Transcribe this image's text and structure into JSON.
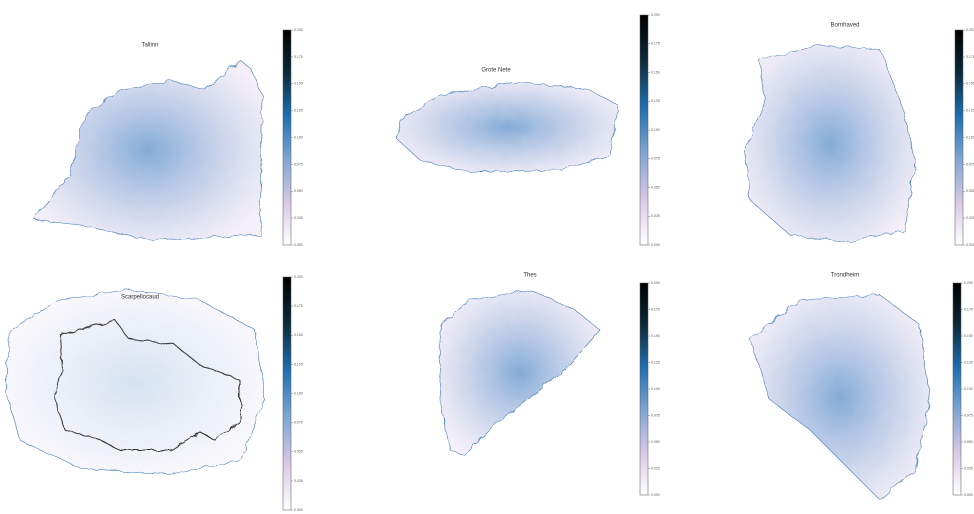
{
  "chart_data": [
    {
      "type": "heatmap",
      "title": "Tallinn",
      "zlim": [
        0,
        0.2
      ],
      "zticks": [
        {
          "value": 0,
          "label": "0.000"
        },
        {
          "value": 0.025,
          "label": "0.025"
        },
        {
          "value": 0.05,
          "label": "0.050"
        },
        {
          "value": 0.075,
          "label": "0.075"
        },
        {
          "value": 0.1,
          "label": "0.100"
        },
        {
          "value": 0.125,
          "label": "0.125"
        },
        {
          "value": 0.15,
          "label": "0.150"
        },
        {
          "value": 0.175,
          "label": "0.175"
        },
        {
          "value": 0.2,
          "label": "0.200"
        }
      ],
      "colors": [
        "#ffffff",
        "#d9c8e6",
        "#7fa6d3",
        "#1f6fb2",
        "#0b2a3a",
        "#000000"
      ]
    },
    {
      "type": "heatmap",
      "title": "Grote Nete",
      "zlim": [
        0,
        0.2
      ],
      "zticks": [
        {
          "value": 0,
          "label": "0.000"
        },
        {
          "value": 0.025,
          "label": "0.025"
        },
        {
          "value": 0.05,
          "label": "0.050"
        },
        {
          "value": 0.075,
          "label": "0.075"
        },
        {
          "value": 0.1,
          "label": "0.100"
        },
        {
          "value": 0.125,
          "label": "0.125"
        },
        {
          "value": 0.15,
          "label": "0.150"
        },
        {
          "value": 0.175,
          "label": "0.175"
        },
        {
          "value": 0.2,
          "label": "0.200"
        }
      ],
      "colors": [
        "#ffffff",
        "#d9c8e6",
        "#7fa6d3",
        "#1f6fb2",
        "#0b2a3a",
        "#000000"
      ]
    },
    {
      "type": "heatmap",
      "title": "Bornhaved",
      "zlim": [
        0,
        0.2
      ],
      "zticks": [
        {
          "value": 0,
          "label": "0.000"
        },
        {
          "value": 0.025,
          "label": "0.025"
        },
        {
          "value": 0.05,
          "label": "0.050"
        },
        {
          "value": 0.075,
          "label": "0.075"
        },
        {
          "value": 0.1,
          "label": "0.100"
        },
        {
          "value": 0.125,
          "label": "0.125"
        },
        {
          "value": 0.15,
          "label": "0.150"
        },
        {
          "value": 0.175,
          "label": "0.175"
        },
        {
          "value": 0.2,
          "label": "0.200"
        }
      ],
      "colors": [
        "#ffffff",
        "#d9c8e6",
        "#7fa6d3",
        "#1f6fb2",
        "#0b2a3a",
        "#000000"
      ]
    },
    {
      "type": "heatmap",
      "title": "Scarpellocaud",
      "zlim": [
        0,
        0.2
      ],
      "zticks": [
        {
          "value": 0,
          "label": "0.000"
        },
        {
          "value": 0.025,
          "label": "0.025"
        },
        {
          "value": 0.05,
          "label": "0.050"
        },
        {
          "value": 0.075,
          "label": "0.075"
        },
        {
          "value": 0.1,
          "label": "0.100"
        },
        {
          "value": 0.125,
          "label": "0.125"
        },
        {
          "value": 0.15,
          "label": "0.150"
        },
        {
          "value": 0.175,
          "label": "0.175"
        },
        {
          "value": 0.2,
          "label": "0.200"
        }
      ],
      "colors": [
        "#ffffff",
        "#d9c8e6",
        "#7fa6d3",
        "#1f6fb2",
        "#0b2a3a",
        "#000000"
      ]
    },
    {
      "type": "heatmap",
      "title": "Thes",
      "zlim": [
        0,
        0.2
      ],
      "zticks": [
        {
          "value": 0,
          "label": "0.000"
        },
        {
          "value": 0.025,
          "label": "0.025"
        },
        {
          "value": 0.05,
          "label": "0.050"
        },
        {
          "value": 0.075,
          "label": "0.075"
        },
        {
          "value": 0.1,
          "label": "0.100"
        },
        {
          "value": 0.125,
          "label": "0.125"
        },
        {
          "value": 0.15,
          "label": "0.150"
        },
        {
          "value": 0.175,
          "label": "0.175"
        },
        {
          "value": 0.2,
          "label": "0.200"
        }
      ],
      "colors": [
        "#ffffff",
        "#d9c8e6",
        "#7fa6d3",
        "#1f6fb2",
        "#0b2a3a",
        "#000000"
      ]
    },
    {
      "type": "heatmap",
      "title": "Trondheim",
      "zlim": [
        0,
        0.2
      ],
      "zticks": [
        {
          "value": 0,
          "label": "0.000"
        },
        {
          "value": 0.025,
          "label": "0.025"
        },
        {
          "value": 0.05,
          "label": "0.050"
        },
        {
          "value": 0.075,
          "label": "0.075"
        },
        {
          "value": 0.1,
          "label": "0.100"
        },
        {
          "value": 0.125,
          "label": "0.125"
        },
        {
          "value": 0.15,
          "label": "0.150"
        },
        {
          "value": 0.175,
          "label": "0.175"
        },
        {
          "value": 0.2,
          "label": "0.200"
        }
      ],
      "colors": [
        "#ffffff",
        "#d9c8e6",
        "#7fa6d3",
        "#1f6fb2",
        "#0b2a3a",
        "#000000"
      ]
    }
  ]
}
